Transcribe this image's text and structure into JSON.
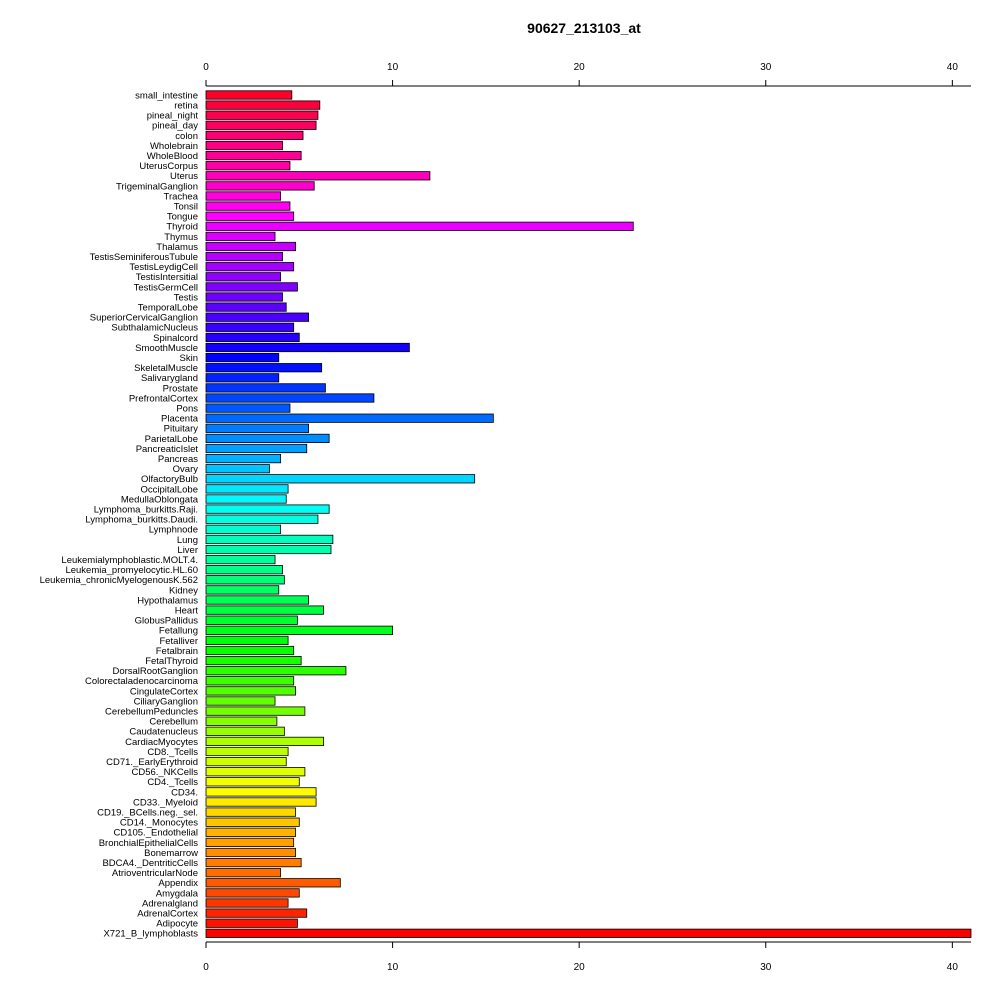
{
  "chart_data": {
    "type": "bar",
    "orientation": "horizontal",
    "title": "90627_213103_at",
    "xlabel": "",
    "ylabel": "",
    "xlim": [
      0,
      41
    ],
    "xticks": [
      0,
      10,
      20,
      30,
      40
    ],
    "grid": false,
    "legend": "none",
    "categories": [
      "small_intestine",
      "retina",
      "pineal_night",
      "pineal_day",
      "colon",
      "Wholebrain",
      "WholeBlood",
      "UterusCorpus",
      "Uterus",
      "TrigeminalGanglion",
      "Trachea",
      "Tonsil",
      "Tongue",
      "Thyroid",
      "Thymus",
      "Thalamus",
      "TestisSeminiferousTubule",
      "TestisLeydigCell",
      "TestisIntersitial",
      "TestisGermCell",
      "Testis",
      "TemporalLobe",
      "SuperiorCervicalGanglion",
      "SubthalamicNucleus",
      "Spinalcord",
      "SmoothMuscle",
      "Skin",
      "SkeletalMuscle",
      "Salivarygland",
      "Prostate",
      "PrefrontalCortex",
      "Pons",
      "Placenta",
      "Pituitary",
      "ParietalLobe",
      "PancreaticIslet",
      "Pancreas",
      "Ovary",
      "OlfactoryBulb",
      "OccipitalLobe",
      "MedullaOblongata",
      "Lymphoma_burkitts.Raji.",
      "Lymphoma_burkitts.Daudi.",
      "Lymphnode",
      "Lung",
      "Liver",
      "Leukemialymphoblastic.MOLT.4.",
      "Leukemia_promyelocytic.HL.60",
      "Leukemia_chronicMyelogenousK.562",
      "Kidney",
      "Hypothalamus",
      "Heart",
      "GlobusPallidus",
      "Fetallung",
      "Fetalliver",
      "Fetalbrain",
      "FetalThyroid",
      "DorsalRootGanglion",
      "Colorectaladenocarcinoma",
      "CingulateCortex",
      "CiliaryGanglion",
      "CerebellumPeduncles",
      "Cerebellum",
      "Caudatenucleus",
      "CardiacMyocytes",
      "CD8._Tcells",
      "CD71._EarlyErythroid",
      "CD56._NKCells",
      "CD4._Tcells",
      "CD34.",
      "CD33._Myeloid",
      "CD19._BCells.neg._sel.",
      "CD14._Monocytes",
      "CD105._Endothelial",
      "BronchialEpithelialCells",
      "Bonemarrow",
      "BDCA4._DentriticCells",
      "AtrioventricularNode",
      "Appendix",
      "Amygdala",
      "Adrenalgland",
      "AdrenalCortex",
      "Adipocyte",
      "X721_B_lymphoblasts"
    ],
    "values": [
      4.6,
      6.1,
      6.0,
      5.9,
      5.2,
      4.1,
      5.1,
      4.5,
      12.0,
      5.8,
      4.0,
      4.5,
      4.7,
      22.9,
      3.7,
      4.8,
      4.1,
      4.7,
      4.0,
      4.9,
      4.1,
      4.3,
      5.5,
      4.7,
      5.0,
      10.9,
      3.9,
      6.2,
      3.9,
      6.4,
      9.0,
      4.5,
      15.4,
      5.5,
      6.6,
      5.4,
      4.0,
      3.4,
      14.4,
      4.4,
      4.3,
      6.6,
      6.0,
      4.0,
      6.8,
      6.7,
      3.7,
      4.1,
      4.2,
      3.9,
      5.5,
      6.3,
      4.9,
      10.0,
      4.4,
      4.7,
      5.1,
      7.5,
      4.7,
      4.8,
      3.7,
      5.3,
      3.8,
      4.2,
      6.3,
      4.4,
      4.3,
      5.3,
      5.0,
      5.9,
      5.9,
      4.8,
      5.0,
      4.8,
      4.7,
      4.8,
      5.1,
      4.0,
      7.2,
      5.0,
      4.4,
      5.4,
      4.9,
      41.0
    ]
  }
}
